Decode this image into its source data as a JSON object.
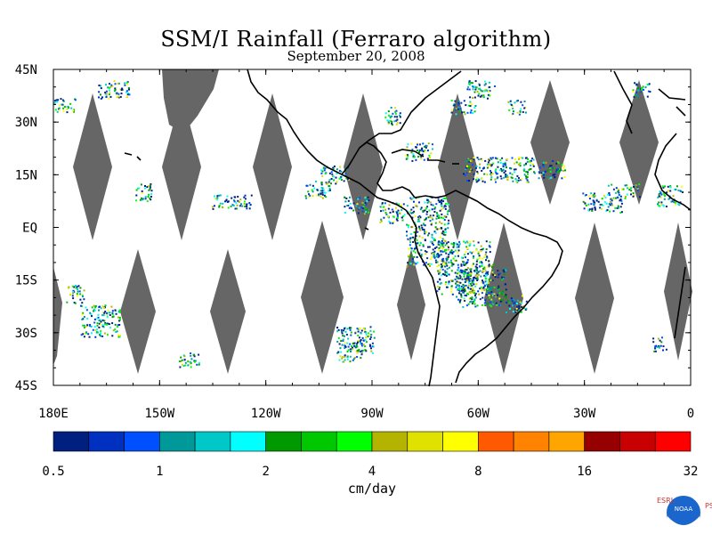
{
  "title": "SSM/I Rainfall (Ferraro algorithm)",
  "subtitle": "September 20, 2008",
  "lat_labels": [
    "45N",
    "30N",
    "15N",
    "EQ",
    "15S",
    "30S",
    "45S"
  ],
  "lon_labels": [
    "180E",
    "150W",
    "120W",
    "90W",
    "60W",
    "30W",
    "0"
  ],
  "colorbar": {
    "colors": [
      "#001f7f",
      "#0030bf",
      "#0050ff",
      "#00999a",
      "#00c8c8",
      "#00ffff",
      "#009900",
      "#00c800",
      "#00ff00",
      "#b4b400",
      "#e1e100",
      "#ffff00",
      "#ff5a00",
      "#ff8200",
      "#ffa500",
      "#960000",
      "#c80000",
      "#ff0000"
    ],
    "labels": [
      "0.5",
      "1",
      "2",
      "4",
      "8",
      "16",
      "32"
    ]
  },
  "units": "cm/day",
  "colors": {
    "no_data": "#666666",
    "coast": "#000000"
  },
  "logo": {
    "left_text": "ESRL",
    "right_text": "PSD",
    "badge_text": "NOAA"
  }
}
